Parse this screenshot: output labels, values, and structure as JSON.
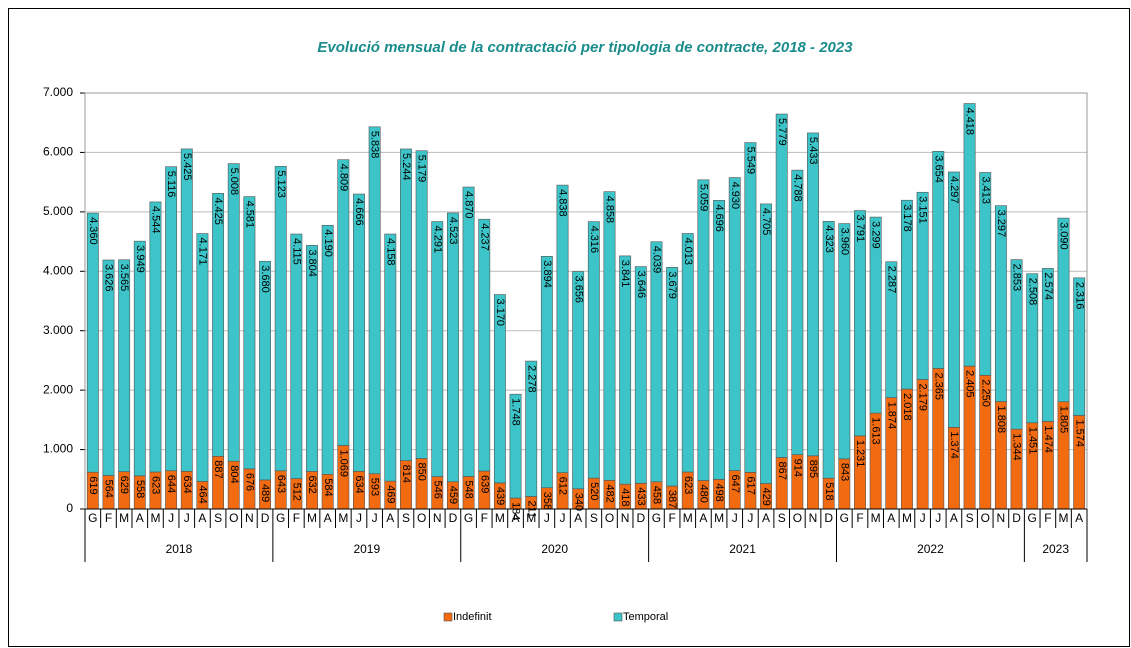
{
  "chart_data": {
    "type": "stacked_bar",
    "title": "Evolució mensual de la contractació per tipologia de contracte, 2018 - 2023",
    "category_groups": [
      {
        "name": "2018",
        "categories": [
          "G",
          "F",
          "M",
          "A",
          "M",
          "J",
          "J",
          "A",
          "S",
          "O",
          "N",
          "D"
        ]
      },
      {
        "name": "2019",
        "categories": [
          "G",
          "F",
          "M",
          "A",
          "M",
          "J",
          "J",
          "A",
          "S",
          "O",
          "N",
          "D"
        ]
      },
      {
        "name": "2020",
        "categories": [
          "G",
          "F",
          "M",
          "A",
          "M",
          "J",
          "J",
          "A",
          "S",
          "O",
          "N",
          "D"
        ]
      },
      {
        "name": "2021",
        "categories": [
          "G",
          "F",
          "M",
          "A",
          "M",
          "J",
          "J",
          "A",
          "S",
          "O",
          "N",
          "D"
        ]
      },
      {
        "name": "2022",
        "categories": [
          "G",
          "F",
          "M",
          "A",
          "M",
          "J",
          "J",
          "A",
          "S",
          "O",
          "N",
          "D"
        ]
      },
      {
        "name": "2023",
        "categories": [
          "G",
          "F",
          "M",
          "A"
        ]
      }
    ],
    "series": [
      {
        "name": "Indefinit",
        "color": "#f26b11",
        "values": [
          619,
          564,
          629,
          558,
          623,
          644,
          634,
          464,
          887,
          804,
          676,
          489,
          643,
          512,
          632,
          584,
          1069,
          634,
          593,
          469,
          814,
          850,
          546,
          459,
          548,
          639,
          439,
          184,
          211,
          358,
          612,
          340,
          520,
          482,
          418,
          433,
          458,
          387,
          623,
          480,
          498,
          647,
          617,
          429,
          867,
          914,
          895,
          518,
          843,
          1231,
          1613,
          1874,
          2018,
          2179,
          2365,
          1374,
          2405,
          2250,
          1808,
          1344,
          1451,
          1474,
          1805,
          1574
        ],
        "value_labels": [
          "619",
          "564",
          "629",
          "558",
          "623",
          "644",
          "634",
          "464",
          "887",
          "804",
          "676",
          "489",
          "643",
          "512",
          "632",
          "584",
          "1.069",
          "634",
          "593",
          "469",
          "814",
          "850",
          "546",
          "459",
          "548",
          "639",
          "439",
          "184",
          "211",
          "358",
          "612",
          "340",
          "520",
          "482",
          "418",
          "433",
          "458",
          "387",
          "623",
          "480",
          "498",
          "647",
          "617",
          "429",
          "867",
          "914",
          "895",
          "518",
          "843",
          "1.231",
          "1.613",
          "1.874",
          "2.018",
          "2.179",
          "2.365",
          "1.374",
          "2.405",
          "2.250",
          "1.808",
          "1.344",
          "1.451",
          "1.474",
          "1.805",
          "1.574"
        ]
      },
      {
        "name": "Temporal",
        "color": "#3cc4c8",
        "values": [
          4360,
          3626,
          3565,
          3949,
          4544,
          5116,
          5425,
          4171,
          4425,
          5008,
          4581,
          3680,
          5123,
          4115,
          3804,
          4190,
          4809,
          4666,
          5838,
          4158,
          5244,
          5179,
          4291,
          4523,
          4870,
          4237,
          3170,
          1748,
          2278,
          3894,
          4838,
          3656,
          4316,
          4858,
          3841,
          3646,
          4039,
          3679,
          4013,
          5059,
          4696,
          4930,
          5549,
          4705,
          5779,
          4788,
          5433,
          4323,
          3960,
          3791,
          3299,
          2287,
          3178,
          3151,
          3654,
          4297,
          4418,
          3413,
          3297,
          2853,
          2508,
          2574,
          3090,
          2316
        ],
        "value_labels": [
          "4.360",
          "3.626",
          "3.565",
          "3.949",
          "4.544",
          "5.116",
          "5.425",
          "4.171",
          "4.425",
          "5.008",
          "4.581",
          "3.680",
          "5.123",
          "4.115",
          "3.804",
          "4.190",
          "4.809",
          "4.666",
          "5.838",
          "4.158",
          "5.244",
          "5.179",
          "4.291",
          "4.523",
          "4.870",
          "4.237",
          "3.170",
          "1.748",
          "2.278",
          "3.894",
          "4.838",
          "3.656",
          "4.316",
          "4.858",
          "3.841",
          "3.646",
          "4.039",
          "3.679",
          "4.013",
          "5.059",
          "4.696",
          "4.930",
          "5.549",
          "4.705",
          "5.779",
          "4.788",
          "5.433",
          "4.323",
          "3.960",
          "3.791",
          "3.299",
          "2.287",
          "3.178",
          "3.151",
          "3.654",
          "4.297",
          "4.418",
          "3.413",
          "3.297",
          "2.853",
          "2.508",
          "2.574",
          "3.090",
          "2.316"
        ]
      }
    ],
    "ylim": [
      0,
      7000
    ],
    "yticks": [
      0,
      {
        "value": 1000,
        "label": "1.000"
      },
      {
        "value": 2000,
        "label": "2.000"
      },
      {
        "value": 3000,
        "label": "3.000"
      },
      {
        "value": 4000,
        "label": "4.000"
      },
      {
        "value": 5000,
        "label": "5.000"
      },
      {
        "value": 6000,
        "label": "6.000"
      },
      {
        "value": 7000,
        "label": "7.000"
      }
    ],
    "grid": true,
    "legend": "bottom"
  }
}
